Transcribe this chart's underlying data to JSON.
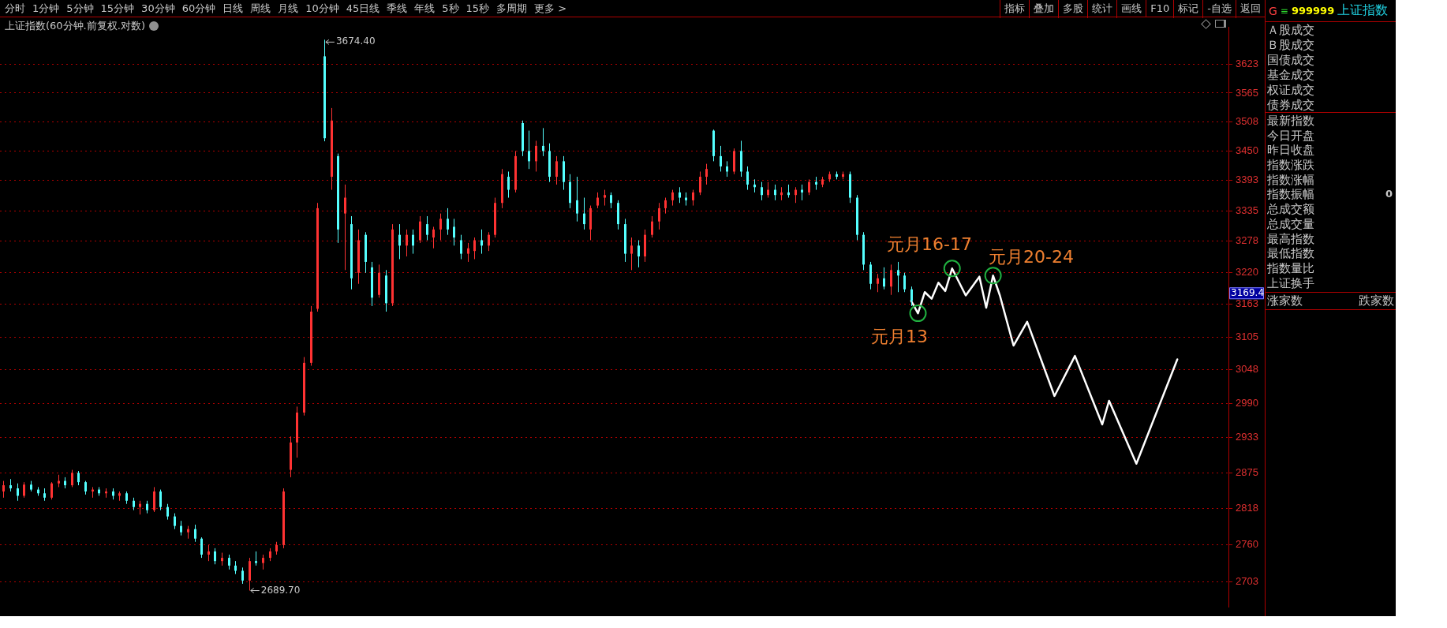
{
  "chart_data": [
    {
      "type": "candlestick",
      "title": "上证指数(60分钟.前复权.对数)",
      "categories": [
        null,
        null,
        null,
        null,
        null,
        null,
        null,
        null,
        null,
        null,
        null,
        null,
        null,
        null,
        null,
        null,
        null,
        null,
        null,
        null,
        null,
        null,
        null,
        null,
        null,
        null,
        null,
        null,
        null,
        null,
        null,
        null,
        null,
        null,
        null,
        null,
        null,
        null,
        null,
        null,
        null,
        null,
        null,
        null,
        null,
        null,
        null,
        null,
        null,
        null,
        null,
        null,
        null,
        null,
        null,
        null,
        null,
        null,
        null,
        null,
        null,
        null,
        null,
        null,
        null,
        null,
        null,
        null,
        null,
        null,
        null,
        null,
        null,
        null,
        null,
        null,
        null,
        null,
        null,
        null,
        null,
        null,
        null,
        null,
        null,
        null,
        null,
        null,
        null,
        null,
        null,
        null,
        null,
        null,
        null,
        null,
        null,
        null,
        null,
        null,
        null,
        null,
        null,
        null,
        null,
        null,
        null,
        null,
        null,
        null,
        null,
        null,
        null,
        null,
        null,
        null,
        null,
        null,
        null,
        null,
        null,
        null,
        null,
        null,
        null,
        null,
        null,
        null,
        null,
        null,
        null,
        null,
        null,
        null,
        null,
        null,
        null,
        null,
        null,
        null,
        null,
        null,
        null,
        null,
        null,
        null,
        null,
        null,
        null,
        null,
        null,
        null,
        null,
        null,
        null,
        null,
        null,
        null,
        null,
        null,
        null,
        null,
        null,
        null,
        null,
        null,
        null,
        null,
        null,
        null,
        null,
        null,
        null,
        null,
        null,
        null,
        null,
        null,
        null,
        null
      ],
      "series": [
        {
          "type": "candlestick",
          "ohlc": [
            [
              2845,
              2862,
              2835,
              2855
            ],
            [
              2855,
              2865,
              2845,
              2850
            ],
            [
              2850,
              2858,
              2830,
              2838
            ],
            [
              2838,
              2860,
              2835,
              2856
            ],
            [
              2856,
              2862,
              2845,
              2848
            ],
            [
              2848,
              2852,
              2838,
              2842
            ],
            [
              2842,
              2850,
              2830,
              2835
            ],
            [
              2835,
              2860,
              2832,
              2858
            ],
            [
              2858,
              2872,
              2852,
              2862
            ],
            [
              2862,
              2868,
              2850,
              2855
            ],
            [
              2855,
              2880,
              2852,
              2875
            ],
            [
              2875,
              2878,
              2855,
              2860
            ],
            [
              2860,
              2862,
              2840,
              2845
            ],
            [
              2845,
              2852,
              2835,
              2848
            ],
            [
              2848,
              2852,
              2838,
              2842
            ],
            [
              2842,
              2850,
              2835,
              2845
            ],
            [
              2845,
              2850,
              2832,
              2838
            ],
            [
              2838,
              2845,
              2830,
              2842
            ],
            [
              2842,
              2845,
              2825,
              2830
            ],
            [
              2830,
              2835,
              2815,
              2820
            ],
            [
              2820,
              2830,
              2808,
              2825
            ],
            [
              2825,
              2830,
              2810,
              2815
            ],
            [
              2815,
              2852,
              2812,
              2845
            ],
            [
              2845,
              2848,
              2815,
              2820
            ],
            [
              2820,
              2825,
              2800,
              2805
            ],
            [
              2805,
              2810,
              2785,
              2790
            ],
            [
              2790,
              2798,
              2775,
              2780
            ],
            [
              2780,
              2790,
              2770,
              2785
            ],
            [
              2785,
              2792,
              2765,
              2770
            ],
            [
              2770,
              2772,
              2740,
              2745
            ],
            [
              2745,
              2760,
              2735,
              2750
            ],
            [
              2750,
              2755,
              2730,
              2735
            ],
            [
              2735,
              2748,
              2728,
              2740
            ],
            [
              2740,
              2745,
              2722,
              2728
            ],
            [
              2728,
              2735,
              2715,
              2720
            ],
            [
              2720,
              2725,
              2700,
              2705
            ],
            [
              2705,
              2740,
              2689.7,
              2735
            ],
            [
              2735,
              2750,
              2728,
              2732
            ],
            [
              2732,
              2745,
              2722,
              2740
            ],
            [
              2740,
              2755,
              2735,
              2750
            ],
            [
              2750,
              2765,
              2745,
              2760
            ],
            [
              2760,
              2850,
              2755,
              2845
            ],
            [
              2880,
              2935,
              2868,
              2925
            ],
            [
              2925,
              2985,
              2900,
              2975
            ],
            [
              2975,
              3070,
              2970,
              3060
            ],
            [
              3060,
              3160,
              3055,
              3150
            ],
            [
              3155,
              3350,
              3150,
              3340
            ],
            [
              3640,
              3674.4,
              3469,
              3475
            ],
            [
              3400,
              3535,
              3375,
              3510
            ],
            [
              3440,
              3445,
              3275,
              3300
            ],
            [
              3330,
              3385,
              3225,
              3360
            ],
            [
              3310,
              3325,
              3190,
              3210
            ],
            [
              3220,
              3300,
              3200,
              3280
            ],
            [
              3290,
              3295,
              3220,
              3240
            ],
            [
              3230,
              3240,
              3160,
              3175
            ],
            [
              3180,
              3235,
              3175,
              3220
            ],
            [
              3215,
              3225,
              3150,
              3165
            ],
            [
              3165,
              3310,
              3160,
              3300
            ],
            [
              3290,
              3310,
              3245,
              3270
            ],
            [
              3270,
              3300,
              3250,
              3290
            ],
            [
              3290,
              3300,
              3255,
              3270
            ],
            [
              3280,
              3325,
              3275,
              3315
            ],
            [
              3310,
              3325,
              3280,
              3290
            ],
            [
              3285,
              3305,
              3265,
              3300
            ],
            [
              3300,
              3330,
              3280,
              3320
            ],
            [
              3320,
              3340,
              3290,
              3300
            ],
            [
              3305,
              3320,
              3270,
              3285
            ],
            [
              3280,
              3290,
              3245,
              3255
            ],
            [
              3255,
              3275,
              3240,
              3265
            ],
            [
              3260,
              3285,
              3245,
              3280
            ],
            [
              3280,
              3300,
              3255,
              3270
            ],
            [
              3270,
              3295,
              3260,
              3290
            ],
            [
              3290,
              3360,
              3285,
              3350
            ],
            [
              3350,
              3415,
              3340,
              3405
            ],
            [
              3400,
              3410,
              3360,
              3375
            ],
            [
              3375,
              3450,
              3370,
              3440
            ],
            [
              3505,
              3510,
              3440,
              3450
            ],
            [
              3450,
              3490,
              3415,
              3430
            ],
            [
              3430,
              3470,
              3410,
              3460
            ],
            [
              3460,
              3495,
              3440,
              3450
            ],
            [
              3450,
              3465,
              3390,
              3400
            ],
            [
              3400,
              3440,
              3385,
              3430
            ],
            [
              3430,
              3440,
              3375,
              3390
            ],
            [
              3390,
              3405,
              3340,
              3350
            ],
            [
              3355,
              3400,
              3315,
              3330
            ],
            [
              3330,
              3360,
              3300,
              3310
            ],
            [
              3300,
              3345,
              3280,
              3340
            ],
            [
              3345,
              3370,
              3340,
              3360
            ],
            [
              3360,
              3375,
              3345,
              3365
            ],
            [
              3365,
              3370,
              3340,
              3350
            ],
            [
              3350,
              3355,
              3300,
              3310
            ],
            [
              3310,
              3320,
              3240,
              3255
            ],
            [
              3255,
              3285,
              3225,
              3270
            ],
            [
              3270,
              3280,
              3230,
              3250
            ],
            [
              3250,
              3300,
              3240,
              3290
            ],
            [
              3290,
              3325,
              3285,
              3315
            ],
            [
              3315,
              3350,
              3300,
              3340
            ],
            [
              3340,
              3360,
              3330,
              3355
            ],
            [
              3355,
              3375,
              3345,
              3370
            ],
            [
              3370,
              3380,
              3350,
              3360
            ],
            [
              3360,
              3370,
              3345,
              3355
            ],
            [
              3355,
              3375,
              3345,
              3370
            ],
            [
              3370,
              3410,
              3365,
              3400
            ],
            [
              3400,
              3425,
              3385,
              3415
            ],
            [
              3490,
              3492,
              3430,
              3440
            ],
            [
              3440,
              3460,
              3410,
              3420
            ],
            [
              3420,
              3430,
              3400,
              3410
            ],
            [
              3410,
              3455,
              3405,
              3450
            ],
            [
              3450,
              3470,
              3400,
              3410
            ],
            [
              3410,
              3420,
              3375,
              3385
            ],
            [
              3385,
              3395,
              3370,
              3380
            ],
            [
              3380,
              3390,
              3355,
              3365
            ],
            [
              3365,
              3390,
              3360,
              3375
            ],
            [
              3375,
              3385,
              3355,
              3365
            ],
            [
              3365,
              3380,
              3355,
              3370
            ],
            [
              3370,
              3385,
              3360,
              3365
            ],
            [
              3365,
              3380,
              3350,
              3375
            ],
            [
              3375,
              3385,
              3355,
              3370
            ],
            [
              3370,
              3395,
              3365,
              3390
            ],
            [
              3390,
              3400,
              3375,
              3385
            ],
            [
              3385,
              3400,
              3380,
              3395
            ],
            [
              3395,
              3410,
              3390,
              3405
            ],
            [
              3405,
              3410,
              3395,
              3400
            ],
            [
              3400,
              3410,
              3395,
              3405
            ],
            [
              3405,
              3410,
              3350,
              3360
            ],
            [
              3360,
              3365,
              3280,
              3290
            ],
            [
              3290,
              3295,
              3225,
              3235
            ],
            [
              3235,
              3240,
              3190,
              3200
            ],
            [
              3200,
              3218,
              3185,
              3210
            ],
            [
              3210,
              3230,
              3190,
              3195
            ],
            [
              3195,
              3235,
              3180,
              3225
            ],
            [
              3225,
              3240,
              3185,
              3215
            ],
            [
              3215,
              3220,
              3185,
              3190
            ],
            [
              3190,
              3195,
              3160,
              3169.4
            ],
            null,
            null,
            null,
            null,
            null,
            null,
            null,
            null,
            null,
            null,
            null,
            null,
            null,
            null,
            null,
            null,
            null,
            null,
            null,
            null,
            null,
            null,
            null,
            null,
            null,
            null,
            null,
            null,
            null,
            null,
            null,
            null,
            null,
            null,
            null,
            null,
            null,
            null,
            null,
            null,
            null,
            null,
            null,
            null,
            null,
            null
          ],
          "colors": [
            "#ff3232",
            "#54ffff",
            "#54ffff",
            "#ff3232",
            "#54ffff",
            "#54ffff",
            "#54ffff",
            "#ff3232",
            "#ff3232",
            "#54ffff",
            "#ff3232",
            "#54ffff",
            "#54ffff",
            "#ff3232",
            "#54ffff",
            "#ff3232",
            "#54ffff",
            "#ff3232",
            "#54ffff",
            "#54ffff",
            "#ff3232",
            "#54ffff",
            "#ff3232",
            "#54ffff",
            "#54ffff",
            "#54ffff",
            "#54ffff",
            "#ff3232",
            "#54ffff",
            "#54ffff",
            "#ff3232",
            "#54ffff",
            "#ff3232",
            "#54ffff",
            "#54ffff",
            "#54ffff",
            "#ff3232",
            "#54ffff",
            "#ff3232",
            "#ff3232",
            "#ff3232",
            "#ff3232",
            "#ff3232",
            "#ff3232",
            "#ff3232",
            "#ff3232",
            "#ff3232",
            "#54ffff",
            "#ff3232",
            "#54ffff",
            "#ff3232",
            "#54ffff",
            "#ff3232",
            "#54ffff",
            "#54ffff",
            "#ff3232",
            "#54ffff",
            "#ff3232",
            "#54ffff",
            "#ff3232",
            "#54ffff",
            "#ff3232",
            "#54ffff",
            "#ff3232",
            "#ff3232",
            "#54ffff",
            "#54ffff",
            "#54ffff",
            "#ff3232",
            "#ff3232",
            "#54ffff",
            "#ff3232",
            "#ff3232",
            "#ff3232",
            "#54ffff",
            "#ff3232",
            "#54ffff",
            "#54ffff",
            "#ff3232",
            "#54ffff",
            "#54ffff",
            "#ff3232",
            "#54ffff",
            "#54ffff",
            "#54ffff",
            "#54ffff",
            "#ff3232",
            "#ff3232",
            "#ff3232",
            "#54ffff",
            "#54ffff",
            "#54ffff",
            "#ff3232",
            "#54ffff",
            "#ff3232",
            "#ff3232",
            "#ff3232",
            "#ff3232",
            "#ff3232",
            "#54ffff",
            "#54ffff",
            "#ff3232",
            "#ff3232",
            "#ff3232",
            "#54ffff",
            "#54ffff",
            "#54ffff",
            "#ff3232",
            "#54ffff",
            "#54ffff",
            "#54ffff",
            "#54ffff",
            "#ff3232",
            "#54ffff",
            "#ff3232",
            "#54ffff",
            "#ff3232",
            "#54ffff",
            "#ff3232",
            "#54ffff",
            "#ff3232",
            "#ff3232",
            "#54ffff",
            "#ff3232",
            "#54ffff",
            "#54ffff",
            "#54ffff",
            "#54ffff",
            "#ff3232",
            "#54ffff",
            "#ff3232",
            "#54ffff",
            "#54ffff",
            "#54ffff",
            null,
            null,
            null,
            null,
            null,
            null,
            null,
            null,
            null,
            null,
            null,
            null,
            null,
            null,
            null,
            null,
            null,
            null,
            null,
            null,
            null,
            null,
            null,
            null,
            null,
            null,
            null,
            null,
            null,
            null,
            null,
            null,
            null,
            null,
            null,
            null,
            null,
            null,
            null,
            null,
            null,
            null,
            null,
            null,
            null,
            null
          ]
        },
        {
          "type": "line",
          "color": "#ffffff",
          "values": [
            null,
            null,
            null,
            null,
            null,
            null,
            null,
            null,
            null,
            null,
            null,
            null,
            null,
            null,
            null,
            null,
            null,
            null,
            null,
            null,
            null,
            null,
            null,
            null,
            null,
            null,
            null,
            null,
            null,
            null,
            null,
            null,
            null,
            null,
            null,
            null,
            null,
            null,
            null,
            null,
            null,
            null,
            null,
            null,
            null,
            null,
            null,
            null,
            null,
            null,
            null,
            null,
            null,
            null,
            null,
            null,
            null,
            null,
            null,
            null,
            null,
            null,
            null,
            null,
            null,
            null,
            null,
            null,
            null,
            null,
            null,
            null,
            null,
            null,
            null,
            null,
            null,
            null,
            null,
            null,
            null,
            null,
            null,
            null,
            null,
            null,
            null,
            null,
            null,
            null,
            null,
            null,
            null,
            null,
            null,
            null,
            null,
            null,
            null,
            null,
            null,
            null,
            null,
            null,
            null,
            null,
            null,
            null,
            null,
            null,
            null,
            null,
            null,
            null,
            null,
            null,
            null,
            null,
            null,
            null,
            null,
            null,
            null,
            null,
            null,
            null,
            null,
            null,
            null,
            null,
            null,
            null,
            null,
            3169.4,
            3147,
            3185,
            3173,
            3202,
            3187,
            3228,
            null,
            3179,
            null,
            3213,
            3157,
            3215,
            3179,
            null,
            3090,
            null,
            3132,
            null,
            null,
            null,
            3003,
            null,
            null,
            3072,
            null,
            null,
            null,
            2955,
            2995,
            null,
            null,
            null,
            2890,
            null,
            null,
            null,
            null,
            null,
            3066,
            null,
            null,
            null,
            null,
            null,
            null,
            null
          ]
        }
      ],
      "log": true,
      "ylim": [
        2665,
        3700
      ],
      "yticks": [
        2703,
        2760,
        2818,
        2875,
        2933,
        2990,
        3048,
        3105,
        3163,
        3220,
        3278,
        3335,
        3393,
        3450,
        3508,
        3565,
        3623
      ],
      "grid": "y",
      "annotations": [
        "3674.40",
        "2689.70",
        "元月13",
        "元月16-17",
        "元月20-24",
        "3169.4"
      ]
    },
    {
      "type": "other",
      "annotations": [
        "分时",
        "1分钟",
        "5分钟",
        "15分钟",
        "30分钟",
        "60分钟",
        "日线",
        "周线",
        "月线",
        "10分钟",
        "45日线",
        "季线",
        "年线",
        "5秒",
        "15秒",
        "多周期",
        "更多 >"
      ]
    },
    {
      "type": "other",
      "annotations": [
        "指标",
        "叠加",
        "多股",
        "统计",
        "画线",
        "F10",
        "标记",
        "-自选",
        "返回"
      ]
    },
    {
      "type": "other",
      "annotations": [
        "G",
        "≡",
        "999999",
        "上证指数",
        "Ａ股成交",
        "Ｂ股成交",
        "国债成交",
        "基金成交",
        "权证成交",
        "债券成交",
        "最新指数",
        "今日开盘",
        "昨日收盘",
        "指数涨跌",
        "指数涨幅",
        "指数振幅",
        "总成交额",
        "总成交量",
        "最高指数",
        "最低指数",
        "指数量比",
        "上证换手",
        "0",
        "涨家数",
        "跌家数"
      ]
    }
  ]
}
